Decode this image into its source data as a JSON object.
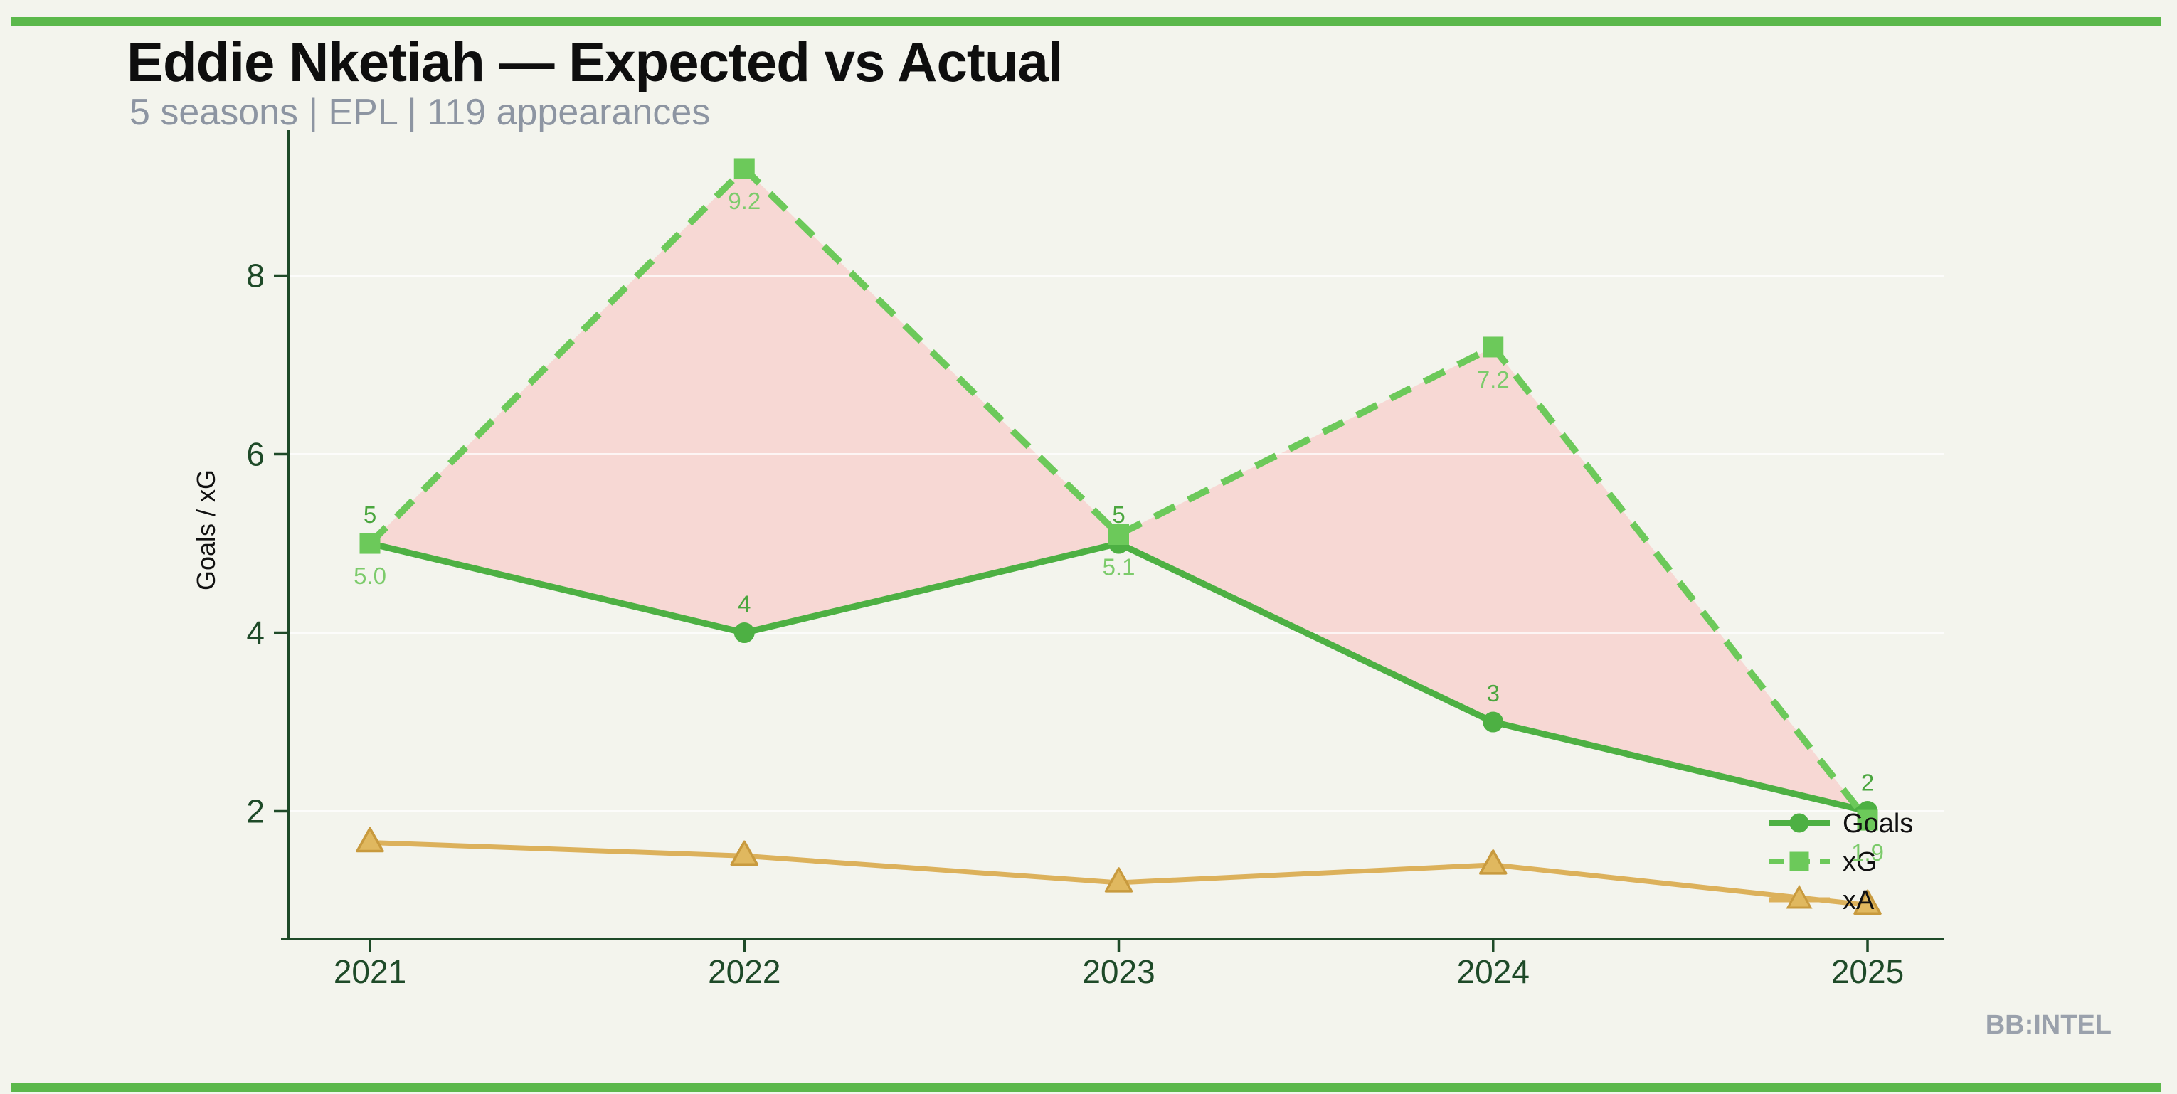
{
  "page": {
    "background": "#f3f4ed",
    "accent_bar_color": "#5bb84b",
    "watermark": "BB:INTEL",
    "watermark_color": "#9aa1ac"
  },
  "header": {
    "title": "Eddie Nketiah — Expected vs Actual",
    "title_color": "#0e0e0e",
    "subtitle": "5 seasons | EPL | 119 appearances",
    "subtitle_color": "#8d95a2"
  },
  "chart_data": {
    "type": "line",
    "title": "Eddie Nketiah — Expected vs Actual",
    "xlabel": "",
    "ylabel": "Goals / xG",
    "ylabel_color": "#111111",
    "categories": [
      "2021",
      "2022",
      "2023",
      "2024",
      "2025"
    ],
    "yticks": [
      2,
      4,
      6,
      8
    ],
    "ylim": [
      0.57,
      9.63
    ],
    "grid": true,
    "gridline_color": "rgba(255,255,255,0.75)",
    "axis_color": "#1e4a28",
    "series": [
      {
        "name": "Goals",
        "values": [
          5,
          4,
          5,
          3,
          2
        ],
        "color": "#4db043",
        "marker": "circle",
        "line_style": "solid",
        "point_labels": [
          "5",
          "4",
          "5",
          "3",
          "2"
        ],
        "label_color": "#4aa63e",
        "label_side": "above"
      },
      {
        "name": "xG",
        "values": [
          5.0,
          9.2,
          5.1,
          7.2,
          1.9
        ],
        "color": "#6cc95a",
        "marker": "square",
        "line_style": "dashed",
        "point_labels": [
          "5.0",
          "9.2",
          "5.1",
          "7.2",
          "1.9"
        ],
        "label_color": "#7ccb6b",
        "label_side": "below"
      },
      {
        "name": "xA",
        "values": [
          1.65,
          1.5,
          1.2,
          1.4,
          0.95
        ],
        "color": "#dcb15b",
        "marker": "triangle",
        "marker_fill": "#e0b85f",
        "marker_edge": "#c89a3e",
        "line_style": "solid",
        "point_labels": [],
        "label_color": "",
        "label_side": "none"
      }
    ],
    "fill_between": {
      "upper": "xG",
      "lower": "Goals",
      "color": "#f7d8d4"
    },
    "legend": {
      "position": "inside-right",
      "entries": [
        "Goals",
        "xG",
        "xA"
      ],
      "text_color": "#111111"
    }
  }
}
